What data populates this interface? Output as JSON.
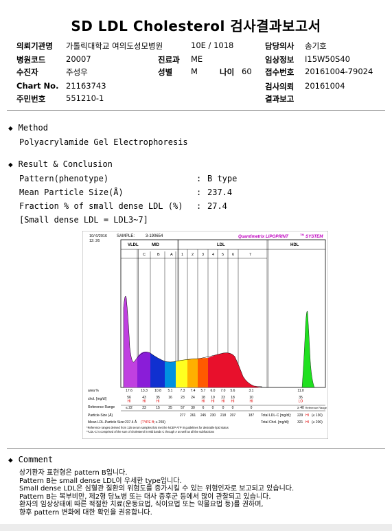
{
  "title": "SD LDL Cholesterol 검사결과보고서",
  "header": {
    "inst_label": "의뢰기관명",
    "inst_value": "가톨릭대학교 여의도성모병원",
    "ward_value": "10E / 1018",
    "doctor_label": "담당의사",
    "doctor_value": "송기호",
    "code_label": "병원코드",
    "code_value": "20007",
    "dept_label": "진료과",
    "dept_value": "ME",
    "clin_label": "임상정보",
    "clin_value": "I15W50S40",
    "patient_label": "수진자",
    "patient_value": "주성우",
    "sex_label": "성별",
    "sex_value": "M",
    "age_label": "나이",
    "age_value": "60",
    "recv_label": "접수번호",
    "recv_value": "20161004-79024",
    "chart_label": "Chart No.",
    "chart_value": "21163743",
    "req_label": "검사의뢰",
    "req_value": "20161004",
    "rrn_label": "주민번호",
    "rrn_value": "551210-1",
    "report_label": "결과보고",
    "report_value": ""
  },
  "method": {
    "heading": "Method",
    "text": "Polyacrylamide Gel Electrophoresis"
  },
  "result": {
    "heading": "Result & Conclusion",
    "rows": [
      {
        "label": "Pattern(phenotype)",
        "colon": ":",
        "value": "B type"
      },
      {
        "label": "Mean Particle Size(Å)",
        "colon": ":",
        "value": "237.4"
      },
      {
        "label": "Fraction % of small dense LDL (%)",
        "colon": ":",
        "value": "27.4"
      }
    ],
    "note": "[Small dense LDL = LDL3~7]"
  },
  "figure": {
    "date": "10/ 6/2016",
    "time": "12: 26",
    "sample_label": "SAMPLE:",
    "sample_value": "3-190654",
    "brand": "Quantimetrix LIPOPRINT",
    "brand_tm": "TM",
    "brand_suffix": "SYSTEM",
    "groups": [
      "VLDL",
      "MID",
      "LDL",
      "HDL"
    ],
    "bands": [
      "C",
      "B",
      "A",
      "1",
      "2",
      "3",
      "4",
      "5",
      "6",
      "7"
    ],
    "row_area_label": "area %",
    "area_values": [
      "17.6",
      "13.3",
      "10.8",
      "5.1",
      "7.3",
      "7.4",
      "5.7",
      "6.0",
      "7.0",
      "5.6",
      "3.1",
      "11.0"
    ],
    "row_chol_label": "chol. [mg/dl]",
    "chol_values": [
      "56",
      "43",
      "35",
      "16",
      "23",
      "24",
      "18",
      "19",
      "23",
      "18",
      "10",
      "35"
    ],
    "chol_flags": [
      "HI",
      "HI",
      "HI",
      "",
      "",
      "",
      "HI",
      "HI",
      "HI",
      "HI",
      "HI",
      "LO"
    ],
    "row_ref_label": "Reference Range",
    "ref_values": [
      "≤ 22",
      "23",
      "15",
      "25",
      "57",
      "30",
      "6",
      "0",
      "0",
      "0",
      "0",
      "≥ 40"
    ],
    "ref_right": "Reference Range",
    "particle_label": "Particle-Size (Å)",
    "particle_values": [
      "277",
      "261",
      "245",
      "230",
      "218",
      "207",
      "187"
    ],
    "total_ldl_label": "Total LDL-C [mg/dl]:",
    "total_ldl_value": "229",
    "total_ldl_flag": "HI",
    "total_ldl_ref": "(≤ 130)",
    "mean_ldl_label": "Mean LDL-Particle Size:",
    "mean_ldl_value": "237.4 Å",
    "mean_ldl_type": "(TYPE B",
    "mean_ldl_ref": "; ≥ 265)",
    "total_chol_label": "Total Chol. [mg/dl]:",
    "total_chol_value": "321",
    "total_chol_flag": "HI",
    "total_chol_ref": "(≤ 200)",
    "footnote1": "*Reference ranges derived from 125 serum samples that met the NCEP ATP III guidelines for desirable lipid status",
    "footnote2": "**LDL-C is comprised of the sum of cholesterol in Mid bands C through A as well as all the subfractions"
  },
  "comment": {
    "heading": "Comment",
    "lines": [
      "상기환자 표현형은 pattern B입니다.",
      "Pattern B는 small dense LDL이 우세한 type입니다.",
      "Small dense LDL은 심혈관 질환의 위험도를 증가시킬 수 있는 위험인자로 보고되고 있습니다.",
      "Pattern B는 복부비만, 제2형 당뇨병 또는 대사 증후군 등에서 많이 관찰되고 있습니다.",
      "환자의 임상상태에 따른 적절한 치료(운동요법, 식이요법 또는 약물요법 등)를 권하며,",
      "향후 pattern 변화에 대한 확인을 권유합니다."
    ]
  },
  "colors": {
    "vldl": "#c040e0",
    "c": "#8a1dd8",
    "b": "#1030d0",
    "a": "#0090e0",
    "l1": "#ffff20",
    "l2": "#ffb000",
    "l3": "#ff5a00",
    "l4_7": "#e8102c",
    "hdl": "#20e020",
    "flag": "#e00000",
    "brand": "#c000c0"
  }
}
